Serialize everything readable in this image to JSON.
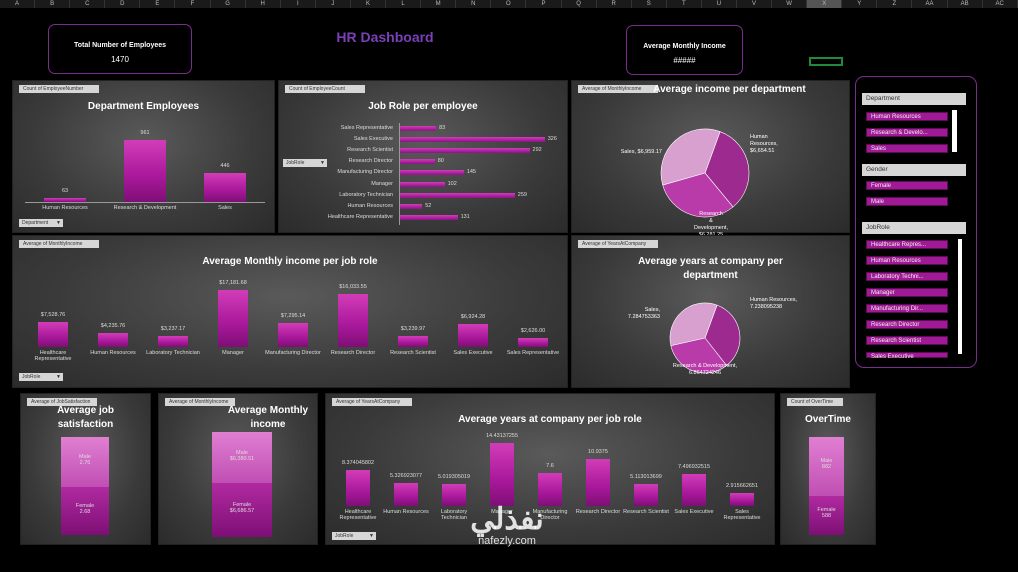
{
  "columns": [
    "A",
    "B",
    "C",
    "D",
    "E",
    "F",
    "G",
    "H",
    "I",
    "J",
    "K",
    "L",
    "M",
    "N",
    "O",
    "P",
    "Q",
    "R",
    "S",
    "T",
    "U",
    "V",
    "W",
    "X",
    "Y",
    "Z",
    "AA",
    "AB",
    "AC"
  ],
  "header": {
    "title": "HR Dashboard"
  },
  "kpis": {
    "total": {
      "label": "Total Number of Employees",
      "value": "1470"
    },
    "avg_income": {
      "label": "Average Monthly Income",
      "value": "#####"
    }
  },
  "panels": {
    "dept": {
      "tag": "Count of EmployeeNumber",
      "title": "Department Employees",
      "filter": "Department"
    },
    "jobrole": {
      "tag": "Count of EmployeeCount",
      "title": "Job Role per employee",
      "filter": "JobRole"
    },
    "income_dept": {
      "tag": "Average of MonthlyIncome",
      "title": "Average income per department"
    },
    "income_role": {
      "tag": "Average of MonthlyIncome",
      "title": "Average Monthly income per job role",
      "filter": "JobRole"
    },
    "years_dept": {
      "tag": "Average of YearsAtCompany",
      "title1": "Average years at company per",
      "title2": "department"
    },
    "satisf": {
      "tag": "Average of JobSatisfaction",
      "title1": "Average job",
      "title2": "satisfaction"
    },
    "inc_gender": {
      "tag": "Average of MonthlyIncome",
      "title1": "Average Monthly",
      "title2": "income"
    },
    "years_role": {
      "tag": "Average of YearsAtCompany",
      "title": "Average years at company per job role",
      "filter": "JobRole"
    },
    "overtime": {
      "tag": "Count of OverTime",
      "title": "OverTime"
    }
  },
  "chart_data": [
    {
      "id": "dept",
      "type": "bar",
      "categories": [
        "Human Resources",
        "Research & Development",
        "Sales"
      ],
      "values": [
        63,
        961,
        446
      ],
      "labels": [
        "63",
        "961",
        "446"
      ],
      "ylim": [
        0,
        1000
      ]
    },
    {
      "id": "jobrole",
      "type": "bar",
      "orientation": "horizontal",
      "categories": [
        "Sales Representative",
        "Sales Executive",
        "Research Scientist",
        "Research Director",
        "Manufacturing Director",
        "Manager",
        "Laboratory Technician",
        "Human Resources",
        "Healthcare Representative"
      ],
      "values": [
        83,
        326,
        292,
        80,
        145,
        102,
        259,
        52,
        131
      ],
      "labels": [
        "83",
        "326",
        "292",
        "80",
        "145",
        "102",
        "259",
        "52",
        "131"
      ],
      "xlim": [
        0,
        340
      ]
    },
    {
      "id": "income_dept",
      "type": "pie",
      "categories": [
        "Human Resources",
        "Research & Development",
        "Sales"
      ],
      "values": [
        6654.51,
        6281.25,
        6959.17
      ],
      "labels": [
        "Human Resources, $6,654.51",
        "Research & Development, $6,281.25",
        "Sales, $6,959.17"
      ],
      "colors": [
        "#9d2a8f",
        "#b93aa9",
        "#d7a0cf"
      ]
    },
    {
      "id": "income_role",
      "type": "bar",
      "categories": [
        "Healthcare Representative",
        "Human Resources",
        "Laboratory Technician",
        "Manager",
        "Manufacturing Director",
        "Research Director",
        "Research Scientist",
        "Sales Executive",
        "Sales Representative"
      ],
      "values": [
        7528.76,
        4235.76,
        3237.17,
        17181.68,
        7295.14,
        16033.55,
        3239.97,
        6924.28,
        2626.0
      ],
      "labels": [
        "$7,528.76",
        "$4,235.76",
        "$3,237.17",
        "$17,181.68",
        "$7,295.14",
        "$16,033.55",
        "$3,239.97",
        "$6,924.28",
        "$2,626.00"
      ],
      "ylim": [
        0,
        18000
      ]
    },
    {
      "id": "years_dept",
      "type": "pie",
      "categories": [
        "Human Resources",
        "Research & Development",
        "Sales"
      ],
      "values": [
        7.238095238,
        6.864724246,
        7.284753363
      ],
      "labels": [
        "Human Resources, 7.238095238",
        "Research & Development, 6.864724246",
        "Sales, 7.284753363"
      ],
      "colors": [
        "#9d2a8f",
        "#b93aa9",
        "#d7a0cf"
      ]
    },
    {
      "id": "satisf",
      "type": "bar",
      "stacked": true,
      "categories": [
        "Male",
        "Female"
      ],
      "values": [
        2.76,
        2.68
      ],
      "labels": [
        "Male, 2.76",
        "Female, 2.68"
      ]
    },
    {
      "id": "inc_gender",
      "type": "bar",
      "stacked": true,
      "categories": [
        "Male",
        "Female"
      ],
      "values": [
        6380.51,
        6686.57
      ],
      "labels": [
        "Male, $6,380.51",
        "Female, $6,686.57"
      ]
    },
    {
      "id": "years_role",
      "type": "bar",
      "categories": [
        "Healthcare Representative",
        "Human Resources",
        "Laboratory Technician",
        "Manager",
        "Manufacturing Director",
        "Research Director",
        "Research Scientist",
        "Sales Executive",
        "Sales Representative"
      ],
      "values": [
        8.374045802,
        5.326923077,
        5.019305019,
        14.43137255,
        7.6,
        10.9375,
        5.113013699,
        7.496932515,
        2.915662651
      ],
      "labels": [
        "8.374045802",
        "5.326923077",
        "5.019305019",
        "14.43137255",
        "7.6",
        "10.9375",
        "5.113013699",
        "7.496932515",
        "2.915662651"
      ],
      "ylim": [
        0,
        15
      ]
    },
    {
      "id": "overtime",
      "type": "bar",
      "stacked": true,
      "categories": [
        "Male",
        "Female"
      ],
      "values": [
        882,
        588
      ],
      "labels": [
        "Male, 882",
        "Female, 588"
      ]
    }
  ],
  "slicers": {
    "department": {
      "title": "Department",
      "items": [
        "Human Resources",
        "Research & Develo...",
        "Sales"
      ]
    },
    "gender": {
      "title": "Gender",
      "items": [
        "Female",
        "Male"
      ]
    },
    "jobrole": {
      "title": "JobRole",
      "items": [
        "Healthcare Repres...",
        "Human Resources",
        "Laboratory Techni...",
        "Manager",
        "Manufacturing Dir...",
        "Research Director",
        "Research Scientist",
        "Sales Executive"
      ]
    }
  },
  "watermark": {
    "text": "nafezly.com"
  }
}
